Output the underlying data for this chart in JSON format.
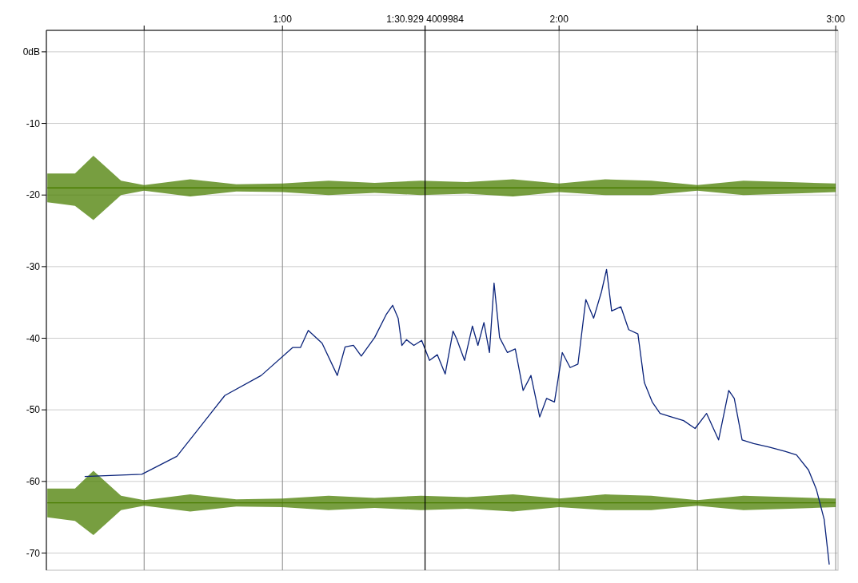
{
  "chart_data": {
    "type": "line",
    "xlim": [
      8.8,
      180.5
    ],
    "ylim": [
      -72.4,
      3
    ],
    "xticks": [
      {
        "value": 30,
        "label": null
      },
      {
        "value": 60,
        "label": "1:00"
      },
      {
        "value": 90.929,
        "label": "1:30.929 4009984"
      },
      {
        "value": 120,
        "label": "2:00"
      },
      {
        "value": 150,
        "label": null
      },
      {
        "value": 180,
        "label": "3:00"
      }
    ],
    "yticks": [
      {
        "value": 0,
        "label": "0dB"
      },
      -10,
      -20,
      -30,
      -40,
      -50,
      -60,
      -70
    ],
    "grid": true,
    "line_style": "solid",
    "marker": "none",
    "ref_lines": [
      {
        "axis": "x",
        "value": 90.929,
        "color": "#000000"
      }
    ],
    "series": [
      {
        "color": "#4a7d00",
        "x": [
          9,
          15,
          19,
          25,
          30,
          40,
          50,
          60,
          70,
          80,
          90,
          100,
          110,
          120,
          130,
          140,
          150,
          160,
          170,
          180
        ],
        "values": [
          -19,
          -19,
          -19,
          -19,
          -19,
          -19,
          -19,
          -19,
          -19,
          -19,
          -19,
          -19,
          -19,
          -19,
          -19,
          -19,
          -19,
          -19,
          -19,
          -19
        ],
        "lower": [
          -21,
          -21.5,
          -23.5,
          -20,
          -19.4,
          -20.2,
          -19.5,
          -19.6,
          -20,
          -19.7,
          -20,
          -19.8,
          -20.2,
          -19.6,
          -20,
          -20,
          -19.4,
          -20,
          -19.8,
          -19.6
        ],
        "upper": [
          -17,
          -17,
          -14.5,
          -18,
          -18.6,
          -17.8,
          -18.5,
          -18.4,
          -18,
          -18.3,
          -18,
          -18.2,
          -17.8,
          -18.4,
          -17.8,
          -18,
          -18.6,
          -18,
          -18.2,
          -18.4
        ]
      },
      {
        "color": "#4a7d00",
        "x": [
          9,
          15,
          19,
          25,
          30,
          40,
          50,
          60,
          70,
          80,
          90,
          100,
          110,
          120,
          130,
          140,
          150,
          160,
          170,
          180
        ],
        "values": [
          -63,
          -63,
          -63,
          -63,
          -63,
          -63,
          -63,
          -63,
          -63,
          -63,
          -63,
          -63,
          -63,
          -63,
          -63,
          -63,
          -63,
          -63,
          -63,
          -63
        ],
        "lower": [
          -65,
          -65.5,
          -67.5,
          -64,
          -63.4,
          -64.2,
          -63.5,
          -63.6,
          -64,
          -63.7,
          -64,
          -63.8,
          -64.2,
          -63.6,
          -64,
          -64,
          -63.4,
          -64,
          -63.8,
          -63.6
        ],
        "upper": [
          -61,
          -61,
          -58.5,
          -62,
          -62.6,
          -61.8,
          -62.5,
          -62.4,
          -62,
          -62.3,
          -62,
          -62.2,
          -61.8,
          -62.4,
          -61.8,
          -62,
          -62.6,
          -62,
          -62.2,
          -62.4
        ]
      },
      {
        "color": "#0a237a",
        "x": [
          17.1,
          29.5,
          37.1,
          47.5,
          55.4,
          62.2,
          63.9,
          65.6,
          68.6,
          71.9,
          73.6,
          75.4,
          77.1,
          80,
          82.5,
          83.9,
          85.1,
          85.9,
          86.9,
          88.5,
          90.2,
          91.9,
          93.6,
          95.3,
          97,
          97.8,
          99.5,
          101.2,
          102.4,
          103.7,
          104.9,
          105.9,
          107.1,
          108.8,
          110.5,
          112.2,
          113.9,
          115.8,
          117.3,
          119,
          120.7,
          122.4,
          124.1,
          125.8,
          127.5,
          129.2,
          130.3,
          131.4,
          133.4,
          135.1,
          137.1,
          138.5,
          140.2,
          141.9,
          144.4,
          147,
          149.5,
          152,
          154.6,
          156.8,
          158,
          159.7,
          162.2,
          165.6,
          169,
          171.5,
          174.1,
          175.8,
          177.5,
          178.6
        ],
        "values": [
          -59.3,
          -59,
          -56.5,
          -48,
          -45.2,
          -41.3,
          -41.3,
          -38.9,
          -40.7,
          -45.2,
          -41.2,
          -41,
          -42.5,
          -39.9,
          -36.7,
          -35.4,
          -37.2,
          -41,
          -40.2,
          -41,
          -40.3,
          -43.1,
          -42.3,
          -45,
          -39,
          -40.1,
          -43.1,
          -38.3,
          -41,
          -37.8,
          -42,
          -32.3,
          -39.9,
          -42,
          -41.5,
          -47.3,
          -45.2,
          -51,
          -48.4,
          -48.9,
          -42,
          -44.1,
          -43.6,
          -34.6,
          -37.2,
          -33.5,
          -30.4,
          -36.2,
          -35.6,
          -38.8,
          -39.4,
          -46.2,
          -48.9,
          -50.5,
          -51,
          -51.5,
          -52.6,
          -50.5,
          -54.2,
          -47.3,
          -48.4,
          -54.2,
          -54.7,
          -55.2,
          -55.8,
          -56.3,
          -58.4,
          -61.1,
          -65.3,
          -71.6
        ]
      }
    ]
  }
}
